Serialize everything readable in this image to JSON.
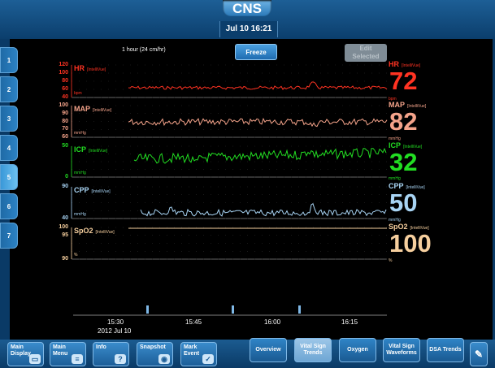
{
  "header": {
    "logo": "CNS",
    "datetime": "Jul 10  16:21"
  },
  "toolbar": {
    "range_label": "1 hour  (24 cm/hr)",
    "freeze_label": "Freeze",
    "edit_label_1": "Edit",
    "edit_label_2": "Selected"
  },
  "side_tabs": [
    "1",
    "2",
    "3",
    "4",
    "5",
    "6",
    "7"
  ],
  "active_side_tab": "5",
  "vitals": [
    {
      "name": "HR",
      "source": "[IntelliVue]",
      "unit": "bpm",
      "value": "72",
      "scale": [
        "120",
        "100",
        "80",
        "60",
        "40"
      ],
      "color": "#ff3322"
    },
    {
      "name": "MAP",
      "source": "[IntelliVue]",
      "unit": "mmHg",
      "value": "82",
      "scale": [
        "100",
        "90",
        "80",
        "70",
        "60"
      ],
      "color": "#f4a38a"
    },
    {
      "name": "ICP",
      "source": "[IntelliVue]",
      "unit": "mmHg",
      "value": "32",
      "scale": [
        "50",
        "",
        "",
        "",
        "0"
      ],
      "color": "#22dd22"
    },
    {
      "name": "CPP",
      "source": "[IntelliVue]",
      "unit": "mmHg",
      "value": "50",
      "scale": [
        "90",
        "",
        "",
        "",
        "40"
      ],
      "color": "#a8d4f4"
    },
    {
      "name": "SpO2",
      "source": "[IntelliVue]",
      "unit": "%",
      "value": "100",
      "scale": [
        "100",
        "95",
        "",
        "",
        "90"
      ],
      "color": "#f6cf9e"
    }
  ],
  "time_axis": {
    "ticks": [
      "15:30",
      "15:45",
      "16:00",
      "16:15"
    ],
    "date": "2012 Jul 10"
  },
  "bottom_nav": [
    {
      "label": "Main Display",
      "icon": "display-icon",
      "glyph": "▭"
    },
    {
      "label": "Main Menu",
      "icon": "menu-icon",
      "glyph": "≡"
    },
    {
      "label": "Info",
      "icon": "help-icon",
      "glyph": "?"
    },
    {
      "label": "Snapshot",
      "icon": "camera-icon",
      "glyph": "◉"
    },
    {
      "label": "Mark Event",
      "icon": "check-icon",
      "glyph": "✓"
    }
  ],
  "view_tabs": [
    {
      "label": "Overview"
    },
    {
      "label": "Vital Sign Trends"
    },
    {
      "label": "Oxygen"
    },
    {
      "label": "Vital Sign Waveforms"
    },
    {
      "label": "DSA Trends"
    }
  ],
  "active_view": "Vital Sign Trends",
  "pen_icon": "pen-icon"
}
